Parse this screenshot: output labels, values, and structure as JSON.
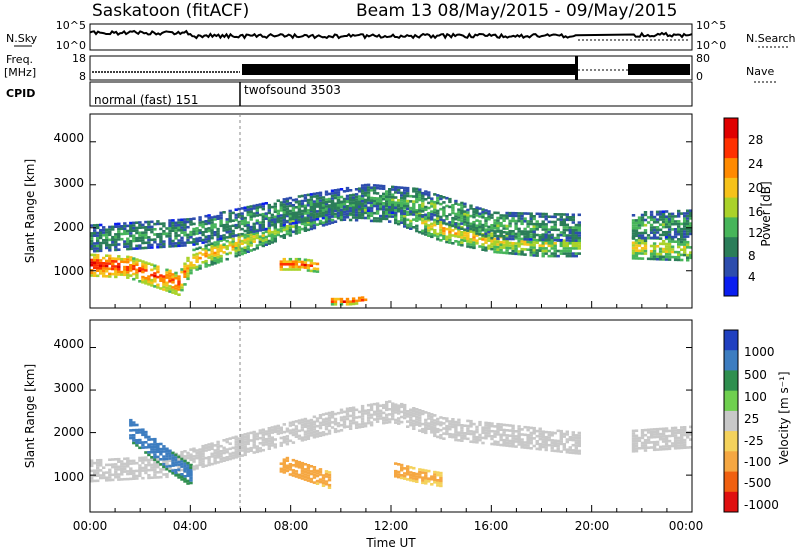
{
  "header": {
    "station_title": "Saskatoon (fitACF)",
    "beam_title": "Beam 13 08/May/2015 - 09/May/2015"
  },
  "top_panels": {
    "nsky_label": "N.Sky",
    "nsky_ticks": [
      "10^5",
      "10^0"
    ],
    "nsearch_label": "N.Search",
    "nsearch_ticks": [
      "10^5",
      "10^0"
    ],
    "freq_label_1": "Freq.",
    "freq_label_2": "[MHz]",
    "freq_ticks": [
      "18",
      "8"
    ],
    "nave_label": "Nave",
    "nave_ticks": [
      "80",
      "0"
    ],
    "cpid_label": "CPID",
    "cpid_modes": [
      {
        "label": "normal (fast) 151",
        "start_hour": 0,
        "end_hour": 6
      },
      {
        "label": "twofsound 3503",
        "start_hour": 6,
        "end_hour": 24
      }
    ]
  },
  "power_panel": {
    "ylabel": "Slant Range [km]",
    "yticks": [
      "4000",
      "3000",
      "2000",
      "1000"
    ],
    "colorbar_label": "Power [dB]",
    "colorbar_ticks": [
      "28",
      "24",
      "20",
      "16",
      "12",
      "8",
      "4"
    ],
    "colors": [
      "#0a1ef0",
      "#2d4dad",
      "#2b7d59",
      "#47b55a",
      "#aad22a",
      "#f6c21a",
      "#ff8a00",
      "#ff3000",
      "#e00000"
    ]
  },
  "velocity_panel": {
    "ylabel": "Slant Range [km]",
    "yticks": [
      "4000",
      "3000",
      "2000",
      "1000"
    ],
    "colorbar_label": "Velocity [m s⁻¹]",
    "colorbar_ticks": [
      "1000",
      "500",
      "100",
      "25",
      "-25",
      "-100",
      "-500",
      "-1000"
    ],
    "colors": [
      "#2040c0",
      "#3d7dc0",
      "#2f8f4f",
      "#6fcf4f",
      "#c8c8c8",
      "#f4d25c",
      "#f5a742",
      "#f06010",
      "#e01010"
    ]
  },
  "x_axis": {
    "label": "Time UT",
    "ticks": [
      "00:00",
      "04:00",
      "08:00",
      "12:00",
      "16:00",
      "20:00",
      "00:00"
    ]
  },
  "chart_data": [
    {
      "type": "heatmap",
      "title": "Beam 13 08/May/2015 - 09/May/2015",
      "xlabel": "Time UT",
      "ylabel": "Slant Range [km]",
      "colorbar_label": "Power [dB]",
      "x_range_hours": [
        0,
        24
      ],
      "ylim": [
        180,
        4600
      ],
      "data_gap_hours": [
        19.5,
        21.5
      ],
      "bands": [
        {
          "name": "main echo band",
          "points": [
            [
              0,
              1150,
              28
            ],
            [
              1.5,
              1100,
              26
            ],
            [
              3.5,
              700,
              26
            ],
            [
              4,
              1250,
              20
            ],
            [
              6,
              1650,
              18
            ],
            [
              8,
              2100,
              14
            ],
            [
              10,
              2450,
              12
            ],
            [
              12,
              2400,
              12
            ],
            [
              14,
              1950,
              20
            ],
            [
              16,
              1700,
              18
            ],
            [
              18,
              1600,
              16
            ],
            [
              19.4,
              1600,
              14
            ],
            [
              21.6,
              1550,
              18
            ],
            [
              24,
              1500,
              16
            ]
          ]
        },
        {
          "name": "upper scatter band",
          "points": [
            [
              0,
              1750,
              10
            ],
            [
              4,
              1900,
              10
            ],
            [
              8,
              2400,
              10
            ],
            [
              11,
              2700,
              10
            ],
            [
              13,
              2600,
              12
            ],
            [
              16,
              2050,
              12
            ],
            [
              19.4,
              2000,
              10
            ],
            [
              21.6,
              2050,
              12
            ],
            [
              24,
              2100,
              10
            ]
          ]
        },
        {
          "name": "patch 07:30-09:00",
          "points": [
            [
              7.5,
              1150,
              28
            ],
            [
              8.3,
              1150,
              26
            ],
            [
              9,
              1100,
              24
            ]
          ]
        },
        {
          "name": "patch 09:30-11:00",
          "points": [
            [
              9.5,
              300,
              28
            ],
            [
              10.3,
              300,
              28
            ],
            [
              11,
              350,
              26
            ]
          ]
        }
      ]
    },
    {
      "type": "heatmap",
      "title": "",
      "xlabel": "Time UT",
      "ylabel": "Slant Range [km]",
      "colorbar_label": "Velocity [m s⁻¹]",
      "x_range_hours": [
        0,
        24
      ],
      "ylim": [
        180,
        4600
      ],
      "data_gap_hours": [
        19.5,
        21.5
      ],
      "bands": [
        {
          "name": "ground scatter",
          "points": [
            [
              0,
              1100,
              0
            ],
            [
              3,
              1200,
              0
            ],
            [
              6,
              1700,
              0
            ],
            [
              10,
              2300,
              0
            ],
            [
              12,
              2500,
              0
            ],
            [
              14,
              2100,
              0
            ],
            [
              19.4,
              1750,
              0
            ],
            [
              21.6,
              1800,
              0
            ],
            [
              24,
              1900,
              0
            ]
          ]
        },
        {
          "name": "westward flow 01:30-04:00",
          "points": [
            [
              1.5,
              2100,
              500
            ],
            [
              3,
              1400,
              500
            ],
            [
              4,
              1000,
              400
            ]
          ]
        },
        {
          "name": "eastward flow 07:30-09:30",
          "points": [
            [
              7.5,
              1300,
              -300
            ],
            [
              8.5,
              1100,
              -200
            ],
            [
              9.5,
              900,
              -150
            ]
          ]
        },
        {
          "name": "eastward flow 12:00-14:00",
          "points": [
            [
              12,
              1150,
              -200
            ],
            [
              13,
              1000,
              -150
            ],
            [
              14,
              900,
              -120
            ]
          ]
        }
      ]
    }
  ]
}
